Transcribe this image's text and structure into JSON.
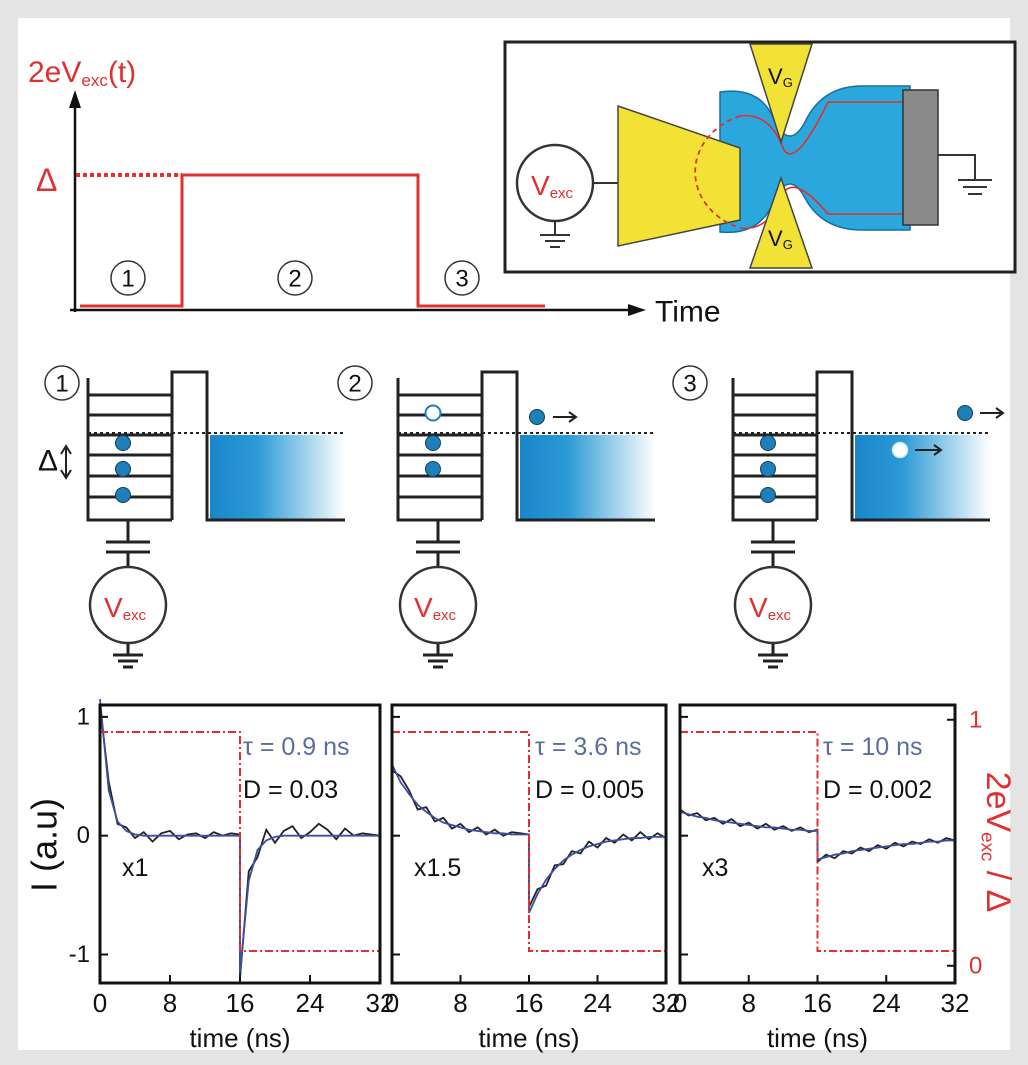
{
  "pulse_diagram": {
    "ylabel": {
      "main": "2eV",
      "sub": "exc",
      "tail": "(t)"
    },
    "level": "Δ",
    "steps": [
      "1",
      "2",
      "3"
    ],
    "xlabel": "Time"
  },
  "device": {
    "source": {
      "main": "V",
      "sub": "exc"
    },
    "gate_top": {
      "main": "V",
      "sub": "G"
    },
    "gate_bottom": {
      "main": "V",
      "sub": "G"
    }
  },
  "energy_diagrams": [
    {
      "step": "1",
      "delta": "Δ",
      "source": {
        "main": "V",
        "sub": "exc"
      }
    },
    {
      "step": "2",
      "source": {
        "main": "V",
        "sub": "exc"
      }
    },
    {
      "step": "3",
      "source": {
        "main": "V",
        "sub": "exc"
      }
    }
  ],
  "chart_data": [
    {
      "type": "line",
      "x": [
        0,
        1,
        2,
        3,
        4,
        5,
        6,
        7,
        8,
        9,
        10,
        11,
        12,
        13,
        14,
        15,
        16,
        16,
        17,
        18,
        19,
        20,
        21,
        22,
        23,
        24,
        25,
        26,
        27,
        28,
        29,
        30,
        31,
        32
      ],
      "xlim": [
        0,
        32
      ],
      "xticks": [
        0,
        8,
        16,
        24,
        32
      ],
      "xlabel": "time (ns)",
      "ylim": [
        -1.24,
        1.1
      ],
      "yticks": [
        -1,
        0,
        1
      ],
      "ytick_labels": true,
      "ylabel": "I (a.u)",
      "y2lim": [
        -0.07,
        1.06
      ],
      "series": [
        {
          "color": "#222222",
          "values": [
            1.1,
            0.45,
            0.1,
            0.07,
            -0.02,
            0.03,
            -0.05,
            0.02,
            0.04,
            -0.03,
            0.01,
            0.02,
            -0.02,
            0.03,
            0.0,
            0.02,
            0.01,
            -1.2,
            -0.3,
            -0.18,
            0.05,
            -0.06,
            0.04,
            0.08,
            -0.02,
            0.03,
            0.1,
            0.05,
            -0.03,
            0.06,
            0.0,
            0.02,
            0.01,
            0.0
          ]
        },
        {
          "color": "#3a4fa0",
          "values": [
            1.15,
            0.38,
            0.12,
            0.04,
            0.01,
            0,
            0,
            0,
            0,
            0,
            0,
            0,
            0,
            0,
            0,
            0,
            0,
            -1.15,
            -0.38,
            -0.12,
            -0.04,
            -0.01,
            0,
            0,
            0,
            0,
            0,
            0,
            0,
            0,
            0,
            0,
            0,
            0
          ]
        },
        {
          "color": "#e0302f",
          "axis": "y2",
          "style": "dash-dot",
          "values": [
            0.95,
            0.95,
            0.95,
            0.95,
            0.95,
            0.95,
            0.95,
            0.95,
            0.95,
            0.95,
            0.95,
            0.95,
            0.95,
            0.95,
            0.95,
            0.95,
            0.95,
            0.06,
            0.06,
            0.06,
            0.06,
            0.06,
            0.06,
            0.06,
            0.06,
            0.06,
            0.06,
            0.06,
            0.06,
            0.06,
            0.06,
            0.06,
            0.06,
            0.06
          ]
        }
      ],
      "annotations": [
        {
          "text": "τ = 0.9 ns",
          "color": "#5a6e9a"
        },
        {
          "text": "D = 0.03"
        },
        {
          "text": "x1"
        }
      ]
    },
    {
      "type": "line",
      "x": [
        0,
        1,
        2,
        3,
        4,
        5,
        6,
        7,
        8,
        9,
        10,
        11,
        12,
        13,
        14,
        15,
        16,
        16,
        17,
        18,
        19,
        20,
        21,
        22,
        23,
        24,
        25,
        26,
        27,
        28,
        29,
        30,
        31,
        32
      ],
      "xlim": [
        0,
        32
      ],
      "xticks": [
        0,
        8,
        16,
        24,
        32
      ],
      "xlabel": "time (ns)",
      "ylim": [
        -1.24,
        1.1
      ],
      "yticks": [
        -1,
        0,
        1
      ],
      "ytick_labels": false,
      "y2lim": [
        -0.07,
        1.06
      ],
      "series": [
        {
          "color": "#222222",
          "values": [
            0.55,
            0.5,
            0.38,
            0.22,
            0.24,
            0.12,
            0.15,
            0.06,
            0.1,
            0.03,
            0.07,
            0.01,
            0.05,
            0.0,
            0.03,
            0.02,
            0.01,
            -0.6,
            -0.45,
            -0.42,
            -0.25,
            -0.24,
            -0.13,
            -0.15,
            -0.05,
            -0.1,
            -0.02,
            -0.06,
            0.01,
            -0.04,
            0.03,
            -0.03,
            0.02,
            -0.02
          ]
        },
        {
          "color": "#3a4fa0",
          "values": [
            0.6,
            0.45,
            0.35,
            0.26,
            0.2,
            0.15,
            0.11,
            0.09,
            0.07,
            0.05,
            0.04,
            0.03,
            0.02,
            0.02,
            0.01,
            0.01,
            0.01,
            -0.65,
            -0.49,
            -0.37,
            -0.28,
            -0.21,
            -0.16,
            -0.12,
            -0.09,
            -0.07,
            -0.05,
            -0.04,
            -0.03,
            -0.02,
            -0.02,
            -0.01,
            -0.01,
            -0.01
          ]
        },
        {
          "color": "#e0302f",
          "axis": "y2",
          "style": "dash-dot",
          "values": [
            0.95,
            0.95,
            0.95,
            0.95,
            0.95,
            0.95,
            0.95,
            0.95,
            0.95,
            0.95,
            0.95,
            0.95,
            0.95,
            0.95,
            0.95,
            0.95,
            0.95,
            0.06,
            0.06,
            0.06,
            0.06,
            0.06,
            0.06,
            0.06,
            0.06,
            0.06,
            0.06,
            0.06,
            0.06,
            0.06,
            0.06,
            0.06,
            0.06,
            0.06
          ]
        }
      ],
      "annotations": [
        {
          "text": "τ = 3.6 ns",
          "color": "#5a6e9a"
        },
        {
          "text": "D = 0.005"
        },
        {
          "text": "x1.5"
        }
      ]
    },
    {
      "type": "line",
      "x": [
        0,
        1,
        2,
        3,
        4,
        5,
        6,
        7,
        8,
        9,
        10,
        11,
        12,
        13,
        14,
        15,
        16,
        16,
        17,
        18,
        19,
        20,
        21,
        22,
        23,
        24,
        25,
        26,
        27,
        28,
        29,
        30,
        31,
        32
      ],
      "xlim": [
        0,
        32
      ],
      "xticks": [
        0,
        8,
        16,
        24,
        32
      ],
      "xlabel": "time (ns)",
      "ylim": [
        -1.24,
        1.1
      ],
      "yticks": [
        -1,
        0,
        1
      ],
      "ytick_labels": false,
      "y2lim": [
        -0.07,
        1.06
      ],
      "y2ticks": [
        0,
        1
      ],
      "y2label": {
        "main": "2eV",
        "sub": "exc",
        "tail": " / Δ"
      },
      "series": [
        {
          "color": "#222222",
          "values": [
            0.22,
            0.17,
            0.19,
            0.13,
            0.15,
            0.1,
            0.14,
            0.08,
            0.11,
            0.06,
            0.1,
            0.05,
            0.08,
            0.04,
            0.07,
            0.03,
            0.05,
            -0.22,
            -0.16,
            -0.19,
            -0.13,
            -0.15,
            -0.1,
            -0.13,
            -0.08,
            -0.11,
            -0.06,
            -0.09,
            -0.05,
            -0.07,
            -0.03,
            -0.06,
            -0.02,
            -0.04
          ]
        },
        {
          "color": "#3a4fa0",
          "values": [
            0.2,
            0.18,
            0.16,
            0.15,
            0.13,
            0.12,
            0.11,
            0.1,
            0.09,
            0.08,
            0.07,
            0.07,
            0.06,
            0.05,
            0.05,
            0.04,
            0.04,
            -0.2,
            -0.18,
            -0.16,
            -0.15,
            -0.13,
            -0.12,
            -0.11,
            -0.1,
            -0.09,
            -0.08,
            -0.07,
            -0.07,
            -0.06,
            -0.05,
            -0.05,
            -0.04,
            -0.04
          ]
        },
        {
          "color": "#e0302f",
          "axis": "y2",
          "style": "dash-dot",
          "values": [
            0.95,
            0.95,
            0.95,
            0.95,
            0.95,
            0.95,
            0.95,
            0.95,
            0.95,
            0.95,
            0.95,
            0.95,
            0.95,
            0.95,
            0.95,
            0.95,
            0.95,
            0.06,
            0.06,
            0.06,
            0.06,
            0.06,
            0.06,
            0.06,
            0.06,
            0.06,
            0.06,
            0.06,
            0.06,
            0.06,
            0.06,
            0.06,
            0.06,
            0.06
          ]
        }
      ],
      "annotations": [
        {
          "text": "τ = 10 ns",
          "color": "#5a6e9a"
        },
        {
          "text": "D = 0.002"
        },
        {
          "text": "x3"
        }
      ]
    }
  ]
}
